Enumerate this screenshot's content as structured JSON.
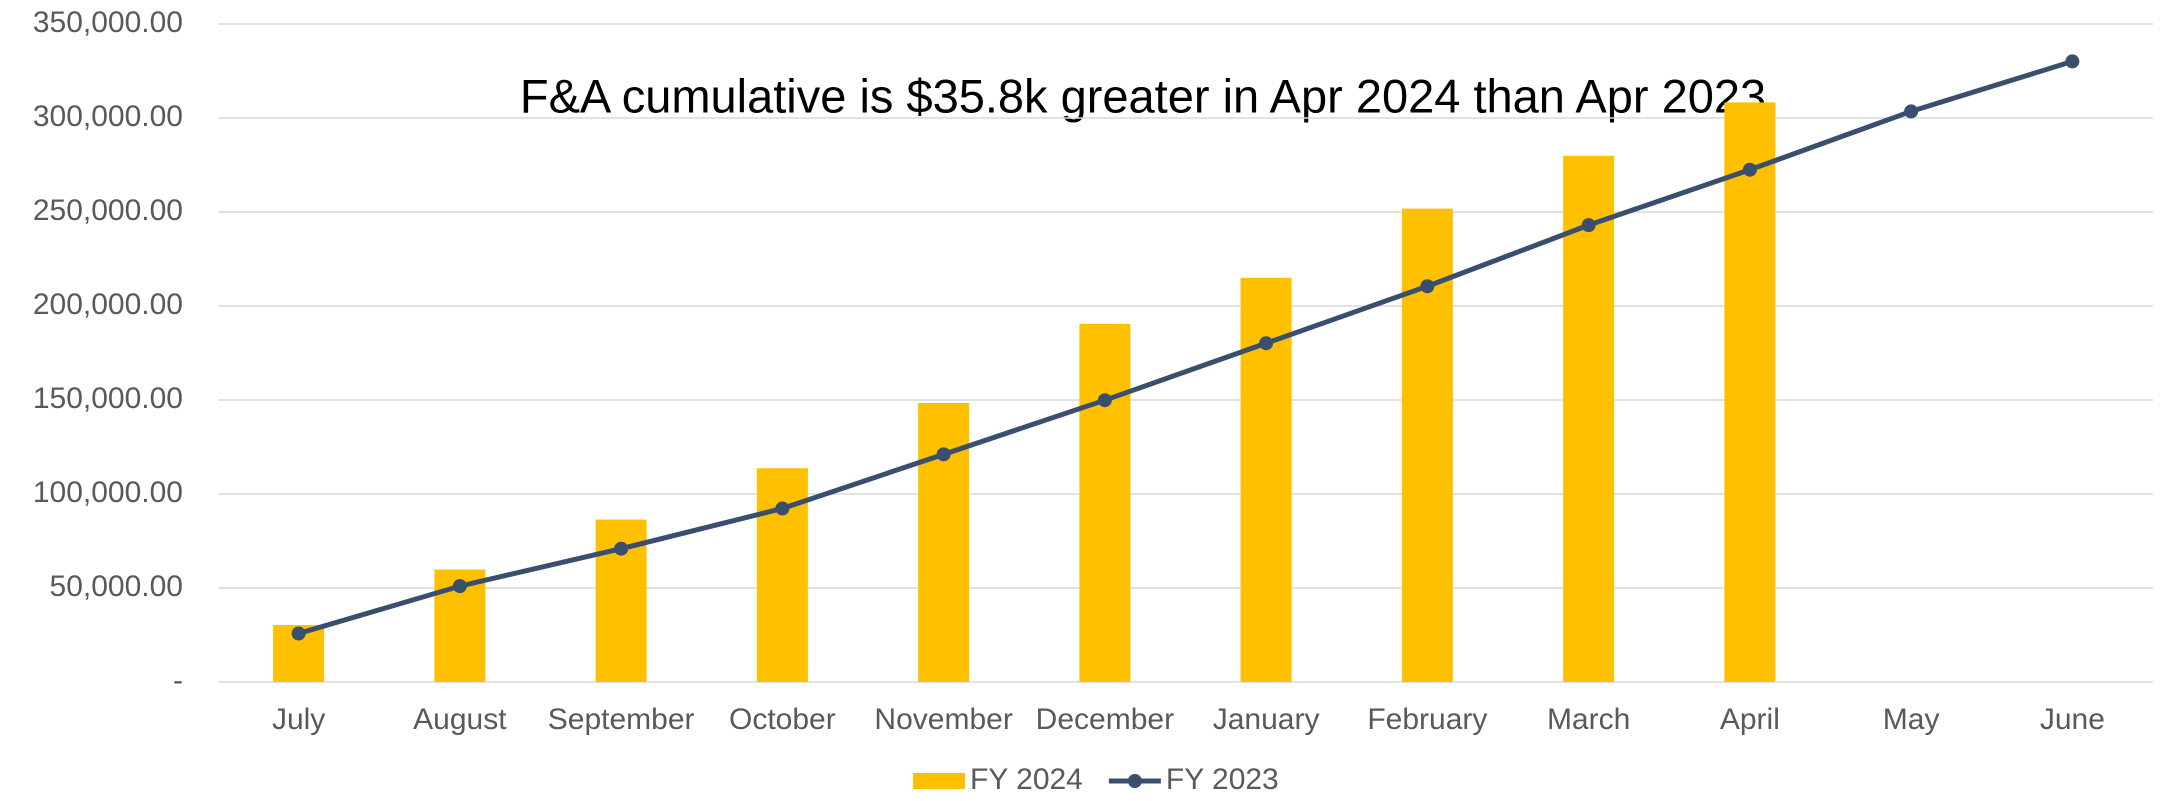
{
  "chart_data": {
    "type": "bar-line",
    "annotation": "F&A cumulative is $35.8k  greater in Apr 2024 than Apr 2023",
    "categories": [
      "July",
      "August",
      "September",
      "October",
      "November",
      "December",
      "January",
      "February",
      "March",
      "April",
      "May",
      "June"
    ],
    "series": [
      {
        "name": "FY 2024",
        "type": "bar",
        "color": "#ffc000",
        "values": [
          30300,
          59800,
          86400,
          113700,
          148400,
          190500,
          215000,
          251800,
          279900,
          308300,
          null,
          null
        ]
      },
      {
        "name": "FY 2023",
        "type": "line",
        "color": "#3a4e6e",
        "values": [
          25800,
          51000,
          70900,
          92300,
          121100,
          149900,
          180200,
          210500,
          243000,
          272500,
          303500,
          330100
        ]
      }
    ],
    "ylim": [
      0,
      350000
    ],
    "yticks": [
      {
        "value": 0,
        "label": "-"
      },
      {
        "value": 50000,
        "label": "50,000.00"
      },
      {
        "value": 100000,
        "label": "100,000.00"
      },
      {
        "value": 150000,
        "label": "150,000.00"
      },
      {
        "value": 200000,
        "label": "200,000.00"
      },
      {
        "value": 250000,
        "label": "250,000.00"
      },
      {
        "value": 300000,
        "label": "300,000.00"
      },
      {
        "value": 350000,
        "label": "350,000.00"
      }
    ],
    "grid": true,
    "legend": "bottom"
  }
}
